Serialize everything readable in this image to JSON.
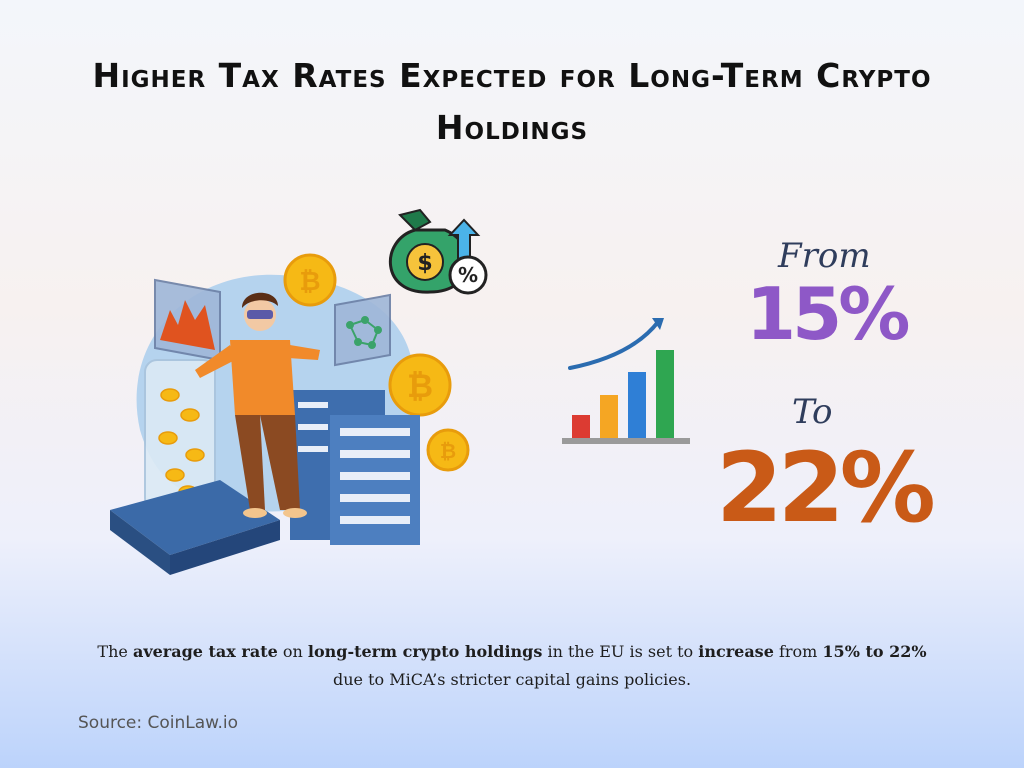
{
  "title": "Higher Tax Rates Expected for Long-Term Crypto Holdings",
  "stat": {
    "from_label": "From",
    "from_value": "15%",
    "to_label": "To",
    "to_value": "22%"
  },
  "description": {
    "p1": "The ",
    "b1": "average tax rate",
    "p2": " on ",
    "b2": "long-term crypto holdings",
    "p3": " in the EU is set to ",
    "b3": "increase",
    "p4": " from ",
    "b4": "15% to 22%",
    "p5": "due to MiCA’s stricter capital gains policies."
  },
  "source": "Source: CoinLaw.io",
  "icons": [
    "money-bag-dollar-icon",
    "percent-icon",
    "up-arrow-icon",
    "bitcoin-coin-icon",
    "bar-chart-icon"
  ],
  "colors": {
    "from_value": "#8e58c7",
    "to_value": "#c95a17",
    "label": "#2f3d5c"
  }
}
